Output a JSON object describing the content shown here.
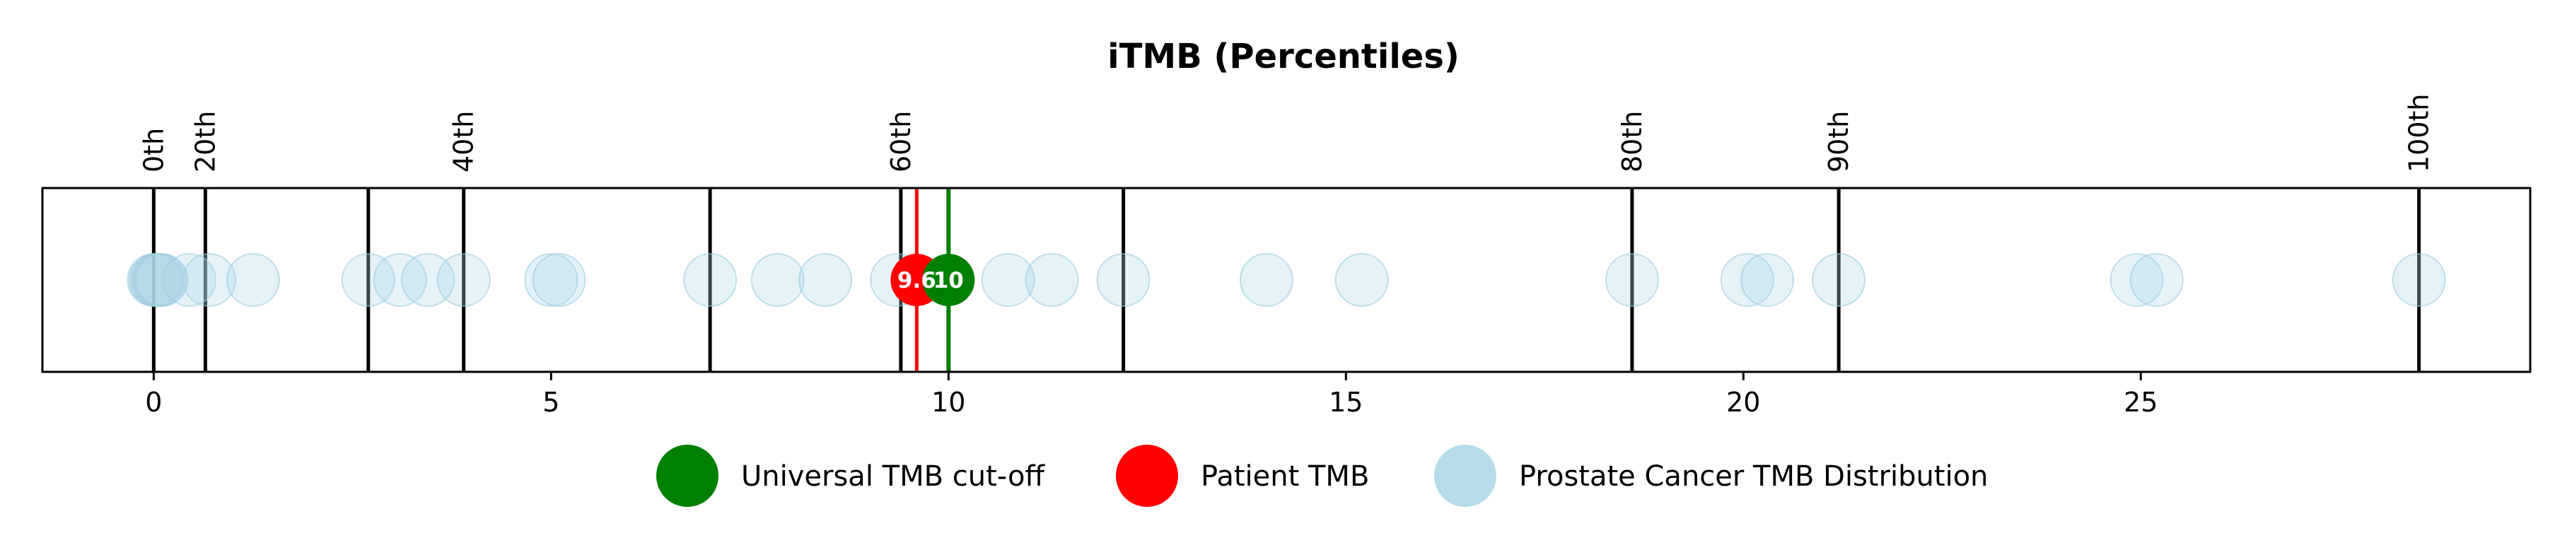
{
  "chart_data": {
    "type": "scatter",
    "title": "iTMB (Percentiles)",
    "xlim": [
      -1.4,
      29.9
    ],
    "x_ticks": [
      0,
      5,
      10,
      15,
      20,
      25
    ],
    "percentile_lines": [
      {
        "x": 0.0,
        "label": "0th"
      },
      {
        "x": 0.65,
        "label": "20th"
      },
      {
        "x": 2.7,
        "label": ""
      },
      {
        "x": 3.9,
        "label": "40th"
      },
      {
        "x": 7.0,
        "label": ""
      },
      {
        "x": 9.4,
        "label": "60th"
      },
      {
        "x": 12.2,
        "label": ""
      },
      {
        "x": 18.6,
        "label": "80th"
      },
      {
        "x": 21.2,
        "label": "90th"
      },
      {
        "x": 28.5,
        "label": "100th"
      }
    ],
    "distribution": {
      "name": "Prostate Cancer TMB Distribution",
      "color": "#add8e6",
      "values": [
        0.0,
        0.02,
        0.04,
        0.06,
        0.08,
        0.1,
        0.45,
        0.7,
        1.25,
        2.7,
        3.1,
        3.45,
        3.9,
        5.0,
        5.1,
        7.0,
        7.85,
        8.45,
        9.35,
        10.75,
        11.3,
        12.2,
        14.0,
        15.2,
        18.6,
        20.05,
        20.3,
        21.2,
        24.95,
        25.2,
        28.5
      ]
    },
    "patient": {
      "name": "Patient TMB",
      "value": 9.6,
      "label": "9.6",
      "color": "#ff0000"
    },
    "cutoff": {
      "name": "Universal TMB cut-off",
      "value": 10,
      "label": "10",
      "color": "#008000"
    },
    "legend": [
      {
        "label": "Universal TMB cut-off",
        "color": "#008000"
      },
      {
        "label": "Patient TMB",
        "color": "#ff0000"
      },
      {
        "label": "Prostate Cancer TMB Distribution",
        "color": "#add8e6"
      }
    ],
    "legend_position": "bottom-center",
    "grid": false
  }
}
